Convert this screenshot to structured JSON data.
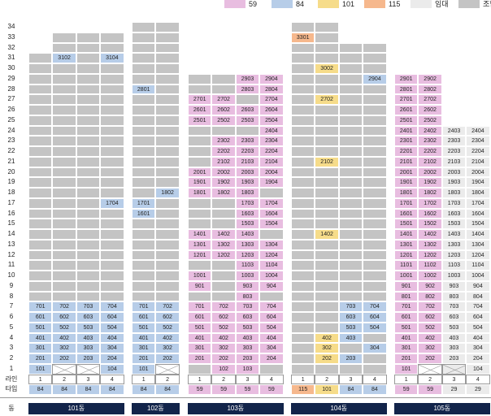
{
  "legend": [
    {
      "label": "59",
      "color": "#e8bde0"
    },
    {
      "label": "84",
      "color": "#b7cde8"
    },
    {
      "label": "101",
      "color": "#f6dc8a"
    },
    {
      "label": "115",
      "color": "#f6b88d"
    },
    {
      "label": "임대",
      "color": "#ebebeb"
    },
    {
      "label": "조합",
      "color": "#c4c4c4"
    }
  ],
  "row_header_line": "라인",
  "row_header_type": "타입",
  "row_header_dong": "동",
  "floors": [
    "34",
    "33",
    "32",
    "31",
    "30",
    "29",
    "28",
    "27",
    "26",
    "25",
    "24",
    "23",
    "22",
    "21",
    "20",
    "19",
    "18",
    "17",
    "16",
    "15",
    "14",
    "13",
    "12",
    "11",
    "10",
    "9",
    "8",
    "7",
    "6",
    "5",
    "4",
    "3",
    "2",
    "1"
  ],
  "buildings": [
    {
      "name": "101동",
      "lines": [
        "1",
        "2",
        "3",
        "4"
      ],
      "types": [
        "84",
        "84",
        "84",
        "84"
      ],
      "columns": [
        {
          "top": 31,
          "cells": {
            "7": "701",
            "6": "601",
            "5": "501",
            "4": "401",
            "3": "301",
            "2": "201",
            "1": "101"
          }
        },
        {
          "top": 33,
          "cells": {
            "31": "3102",
            "7": "702",
            "6": "602",
            "5": "502",
            "4": "402",
            "3": "302",
            "2": "202",
            "1": "X"
          }
        },
        {
          "top": 33,
          "cells": {
            "7": "703",
            "6": "603",
            "5": "503",
            "4": "403",
            "3": "303",
            "2": "203",
            "1": "X"
          }
        },
        {
          "top": 33,
          "cells": {
            "31": "3104",
            "17": "1704",
            "7": "704",
            "6": "604",
            "5": "504",
            "4": "404",
            "3": "304",
            "2": "204",
            "1": "104"
          }
        }
      ],
      "colors": "b"
    },
    {
      "name": "102동",
      "lines": [
        "1",
        "2"
      ],
      "types": [
        "84",
        "84"
      ],
      "columns": [
        {
          "top": 34,
          "cells": {
            "28": "2801",
            "17": "1701",
            "16": "1601",
            "7": "701",
            "6": "601",
            "5": "501",
            "4": "401",
            "3": "301",
            "2": "201",
            "1": "101"
          }
        },
        {
          "top": 34,
          "cells": {
            "18": "1802",
            "7": "702",
            "6": "602",
            "5": "502",
            "4": "402",
            "3": "302",
            "2": "202",
            "1": "X"
          }
        }
      ],
      "colors": "b"
    },
    {
      "name": "103동",
      "lines": [
        "1",
        "2",
        "3",
        "4"
      ],
      "types": [
        "59",
        "59",
        "59",
        "59"
      ],
      "columns": [
        {
          "top": 29,
          "cells": {
            "27": "2701",
            "26": "2601",
            "25": "2501",
            "20": "2001",
            "19": "1901",
            "18": "1801",
            "14": "1401",
            "13": "1301",
            "12": "1201",
            "10": "1001",
            "9": "901",
            "7": "701",
            "6": "601",
            "5": "501",
            "4": "401",
            "3": "301",
            "2": "201"
          }
        },
        {
          "top": 29,
          "cells": {
            "27": "2702",
            "26": "2602",
            "25": "2502",
            "23": "2302",
            "22": "2202",
            "21": "2102",
            "20": "2002",
            "19": "1902",
            "18": "1802",
            "14": "1402",
            "13": "1302",
            "12": "1202",
            "7": "702",
            "6": "602",
            "5": "502",
            "4": "402",
            "3": "302",
            "2": "202",
            "1": "102"
          }
        },
        {
          "top": 29,
          "cells": {
            "29": "2903",
            "28": "2803",
            "26": "2603",
            "25": "2503",
            "23": "2303",
            "22": "2203",
            "21": "2103",
            "20": "2003",
            "19": "1903",
            "18": "1803",
            "17": "1703",
            "16": "1603",
            "15": "1503",
            "14": "1403",
            "13": "1303",
            "12": "1203",
            "11": "1103",
            "10": "1003",
            "9": "903",
            "8": "803",
            "7": "703",
            "6": "603",
            "5": "503",
            "4": "403",
            "3": "303",
            "2": "203",
            "1": "103"
          }
        },
        {
          "top": 29,
          "cells": {
            "29": "2904",
            "28": "2804",
            "27": "2704",
            "26": "2604",
            "25": "2504",
            "24": "2404",
            "23": "2304",
            "22": "2204",
            "21": "2104",
            "20": "2004",
            "19": "1904",
            "17": "1704",
            "16": "1604",
            "15": "1504",
            "13": "1304",
            "12": "1204",
            "11": "1104",
            "10": "1004",
            "9": "904",
            "7": "704",
            "6": "604",
            "5": "504",
            "4": "404",
            "3": "304",
            "2": "204"
          }
        }
      ],
      "colors": "p"
    },
    {
      "name": "104동",
      "lines": [
        "1",
        "2",
        "3",
        "4"
      ],
      "types": [
        "115",
        "101",
        "84",
        "84"
      ],
      "columns": [
        {
          "top": 34,
          "cells": {
            "33": "3301",
            "1": ""
          },
          "color": "o"
        },
        {
          "top": 34,
          "cells": {
            "30": "3002",
            "27": "2702",
            "21": "2102",
            "14": "1402",
            "4": "402",
            "3": "302",
            "2": "202",
            "1": ""
          },
          "color": "y"
        },
        {
          "top": 32,
          "cells": {
            "7": "703",
            "6": "603",
            "5": "503",
            "4": "403",
            "2": "203",
            "1": ""
          },
          "color": "b"
        },
        {
          "top": 32,
          "cells": {
            "29": "2904",
            "7": "704",
            "6": "604",
            "5": "504",
            "3": "304",
            "1": ""
          },
          "color": "b"
        }
      ]
    },
    {
      "name": "105동",
      "lines": [
        "1",
        "2",
        "3",
        "4"
      ],
      "types": [
        "59",
        "59",
        "29",
        "29"
      ],
      "columns": [
        {
          "top": 29,
          "cells": {
            "29": "2901",
            "28": "2801",
            "27": "2701",
            "26": "2601",
            "25": "2501",
            "24": "2401",
            "23": "2301",
            "22": "2201",
            "21": "2101",
            "20": "2001",
            "19": "1901",
            "18": "1801",
            "17": "1701",
            "16": "1601",
            "15": "1501",
            "14": "1401",
            "13": "1301",
            "12": "1201",
            "11": "1101",
            "10": "1001",
            "9": "901",
            "8": "801",
            "7": "701",
            "6": "601",
            "5": "501",
            "4": "401",
            "3": "301",
            "2": "201",
            "1": "101"
          },
          "color": "p"
        },
        {
          "top": 29,
          "cells": {
            "29": "2902",
            "28": "2802",
            "27": "2702",
            "26": "2602",
            "25": "2502",
            "24": "2402",
            "23": "2302",
            "22": "2202",
            "21": "2102",
            "20": "2002",
            "19": "1902",
            "18": "1802",
            "17": "1702",
            "16": "1602",
            "15": "1502",
            "14": "1402",
            "13": "1302",
            "12": "1202",
            "11": "1102",
            "10": "1002",
            "9": "902",
            "8": "802",
            "7": "702",
            "6": "602",
            "5": "502",
            "4": "402",
            "3": "302",
            "2": "202",
            "1": "X"
          },
          "color": "p"
        },
        {
          "top": 24,
          "cells": {
            "24": "2403",
            "23": "2303",
            "22": "2203",
            "21": "2103",
            "20": "2003",
            "19": "1903",
            "18": "1803",
            "17": "1703",
            "16": "1603",
            "15": "1503",
            "14": "1403",
            "13": "1303",
            "12": "1203",
            "11": "1103",
            "10": "1003",
            "9": "903",
            "8": "803",
            "7": "703",
            "6": "603",
            "5": "503",
            "4": "403",
            "3": "303",
            "2": "203",
            "1": "X"
          },
          "color": "w"
        },
        {
          "top": 24,
          "cells": {
            "24": "2404",
            "23": "2304",
            "22": "2204",
            "21": "2104",
            "20": "2004",
            "19": "1904",
            "18": "1804",
            "17": "1704",
            "16": "1604",
            "15": "1504",
            "14": "1404",
            "13": "1304",
            "12": "1204",
            "11": "1104",
            "10": "1004",
            "9": "904",
            "8": "804",
            "7": "704",
            "6": "604",
            "5": "504",
            "4": "404",
            "3": "304",
            "2": "204",
            "1": "104"
          },
          "color": "w"
        }
      ]
    }
  ]
}
